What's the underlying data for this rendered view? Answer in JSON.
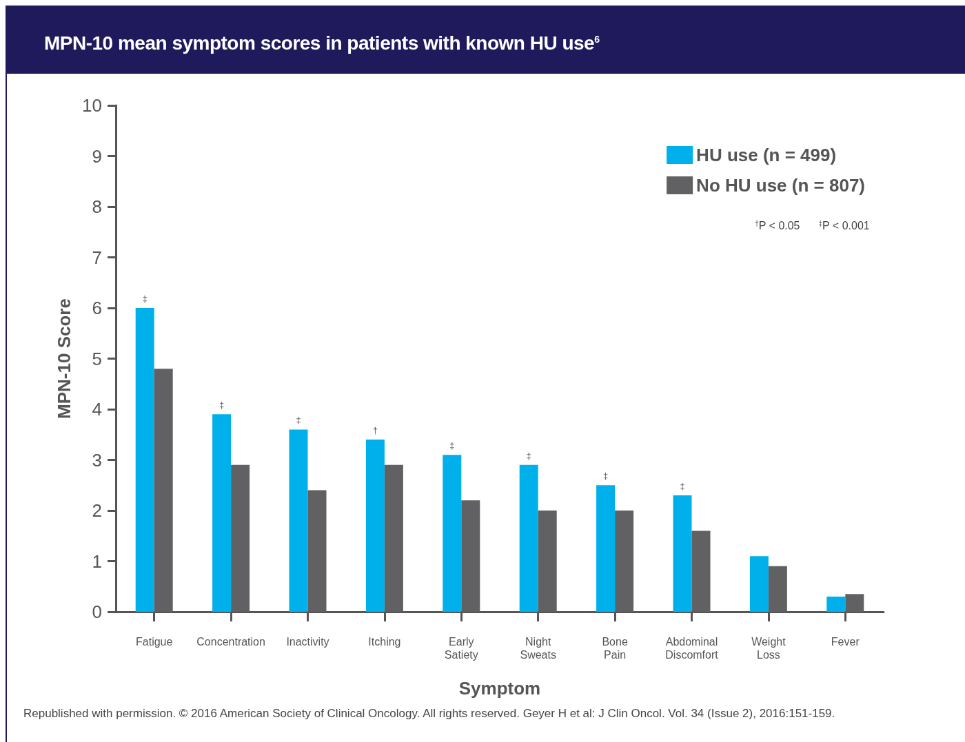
{
  "chart_data": {
    "type": "bar",
    "title": "MPN-10 mean symptom scores in patients with known HU use$^{6}$",
    "xlabel": "Symptom",
    "ylabel": "MPN-10 Score",
    "categories": [
      "Fatigue",
      "Concentration",
      "Inactivity",
      "Itching",
      "Early\nSatiety",
      "Night\nSweats",
      "Bone\nPain",
      "Abdominal\nDiscomfort",
      "Weight\nLoss",
      "Fever"
    ],
    "series": [
      {
        "name": "HU use (n = 499)",
        "color": "#00b0ea",
        "values": [
          6.0,
          3.9,
          3.6,
          3.4,
          3.1,
          2.9,
          2.5,
          2.3,
          1.1,
          0.3
        ]
      },
      {
        "name": "No HU use (n = 807)",
        "color": "#616163",
        "values": [
          4.8,
          2.9,
          2.4,
          2.9,
          2.2,
          2.0,
          2.0,
          1.6,
          0.9,
          0.35
        ]
      }
    ],
    "ylim": [
      0,
      10
    ],
    "yticks": [
      0,
      1,
      2,
      3,
      4,
      5,
      6,
      7,
      8,
      9,
      10
    ],
    "grid": false,
    "legend": "top right",
    "annotations": [
      {
        "text": "‡",
        "x": "Fatigue",
        "y": 6.0
      },
      {
        "text": "‡",
        "x": "Concentration",
        "y": 3.9
      },
      {
        "text": "‡",
        "x": "Inactivity",
        "y": 3.6
      },
      {
        "text": "†",
        "x": "Itching",
        "y": 3.4
      },
      {
        "text": "‡",
        "x": "Early\nSatiety",
        "y": 3.1
      },
      {
        "text": "‡",
        "x": "Night\nSweats",
        "y": 2.9
      },
      {
        "text": "‡",
        "x": "Bone\nPain",
        "y": 2.5
      },
      {
        "text": "‡",
        "x": "Abdominal\nDiscomfort",
        "y": 2.3
      },
      "$^{†}$P < 0.05",
      "$^{‡}$P < 0.001",
      "Republished with permission. © 2016 American Society of Clinical Oncology. All rights reserved. Geyer H et al: J Clin Oncol. Vol. 34 (Issue 2), 2016:151-159."
    ]
  }
}
